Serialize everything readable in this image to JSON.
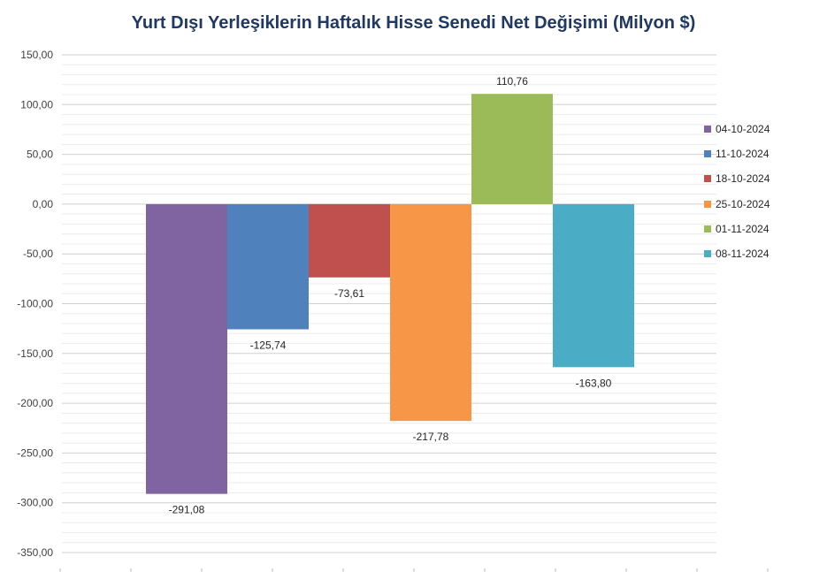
{
  "chart_data": {
    "type": "bar",
    "title": "Yurt Dışı Yerleşiklerin Haftalık Hisse Senedi Net Değişimi (Milyon $)",
    "series": [
      {
        "name": "04-10-2024",
        "value": -291.08,
        "label": "-291,08",
        "color": "#8064a2"
      },
      {
        "name": "11-10-2024",
        "value": -125.74,
        "label": "-125,74",
        "color": "#4f81bd"
      },
      {
        "name": "18-10-2024",
        "value": -73.61,
        "label": "-73,61",
        "color": "#c0504d"
      },
      {
        "name": "25-10-2024",
        "value": -217.78,
        "label": "-217,78",
        "color": "#f79646"
      },
      {
        "name": "01-11-2024",
        "value": 110.76,
        "label": "110,76",
        "color": "#9bbb59"
      },
      {
        "name": "08-11-2024",
        "value": -163.8,
        "label": "-163,80",
        "color": "#4bacc6"
      }
    ],
    "yticks": [
      "150,00",
      "100,00",
      "50,00",
      "0,00",
      "-50,00",
      "-100,00",
      "-150,00",
      "-200,00",
      "-250,00",
      "-300,00",
      "-350,00"
    ],
    "ylim": [
      -350,
      150
    ],
    "grid": true,
    "legend_position": "right"
  }
}
